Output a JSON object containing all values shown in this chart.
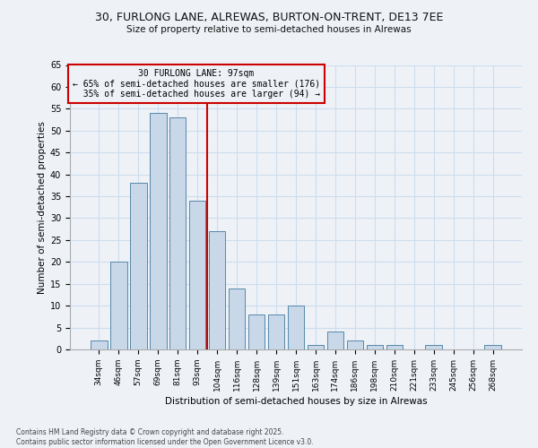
{
  "title_line1": "30, FURLONG LANE, ALREWAS, BURTON-ON-TRENT, DE13 7EE",
  "title_line2": "Size of property relative to semi-detached houses in Alrewas",
  "xlabel": "Distribution of semi-detached houses by size in Alrewas",
  "ylabel": "Number of semi-detached properties",
  "categories": [
    "34sqm",
    "46sqm",
    "57sqm",
    "69sqm",
    "81sqm",
    "93sqm",
    "104sqm",
    "116sqm",
    "128sqm",
    "139sqm",
    "151sqm",
    "163sqm",
    "174sqm",
    "186sqm",
    "198sqm",
    "210sqm",
    "221sqm",
    "233sqm",
    "245sqm",
    "256sqm",
    "268sqm"
  ],
  "values": [
    2,
    20,
    38,
    54,
    53,
    34,
    27,
    14,
    8,
    8,
    10,
    1,
    4,
    2,
    1,
    1,
    0,
    1,
    0,
    0,
    1
  ],
  "bar_color": "#c8d8e8",
  "bar_edge_color": "#5588aa",
  "grid_color": "#ccddee",
  "background_color": "#eef2f7",
  "property_label": "30 FURLONG LANE: 97sqm",
  "pct_smaller": 65,
  "count_smaller": 176,
  "pct_larger": 35,
  "count_larger": 94,
  "annotation_box_color": "#cc0000",
  "ylim": [
    0,
    65
  ],
  "yticks": [
    0,
    5,
    10,
    15,
    20,
    25,
    30,
    35,
    40,
    45,
    50,
    55,
    60,
    65
  ],
  "footnote": "Contains HM Land Registry data © Crown copyright and database right 2025.\nContains public sector information licensed under the Open Government Licence v3.0."
}
